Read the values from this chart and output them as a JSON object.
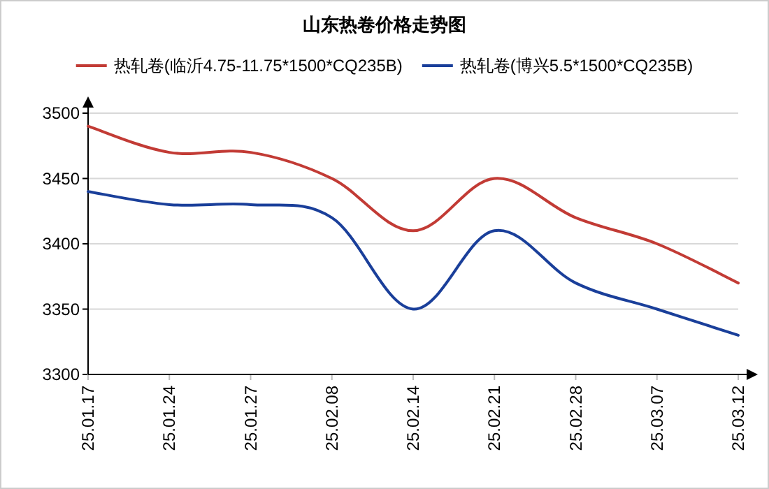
{
  "chart_data": {
    "type": "line",
    "title": "山东热卷价格走势图",
    "categories": [
      "25.01.17",
      "25.01.24",
      "25.01.27",
      "25.02.08",
      "25.02.14",
      "25.02.21",
      "25.02.28",
      "25.03.07",
      "25.03.12"
    ],
    "series": [
      {
        "name": "热轧卷(临沂4.75-11.75*1500*CQ235B)",
        "color": "#c23b35",
        "values": [
          3490,
          3470,
          3470,
          3450,
          3410,
          3450,
          3420,
          3400,
          3370
        ]
      },
      {
        "name": "热轧卷(博兴5.5*1500*CQ235B)",
        "color": "#1a3f9a",
        "values": [
          3440,
          3430,
          3430,
          3420,
          3350,
          3410,
          3370,
          3350,
          3330
        ]
      }
    ],
    "ylim": [
      3300,
      3500
    ],
    "yticks": [
      3300,
      3350,
      3400,
      3450,
      3500
    ],
    "grid": "y",
    "legend": "top"
  }
}
